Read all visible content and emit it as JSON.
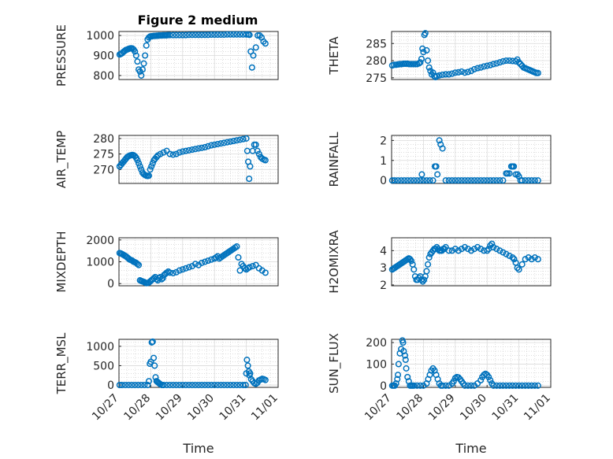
{
  "chart_data": [
    {
      "type": "scatter",
      "title": "Figure 2 medium",
      "ylabel": "PRESSURE",
      "ylim": [
        780,
        1020
      ],
      "yticks": [
        "800",
        "900",
        "1000"
      ],
      "xlim": [
        0,
        5
      ],
      "x": [
        0.02,
        0.06,
        0.1,
        0.14,
        0.18,
        0.22,
        0.26,
        0.3,
        0.34,
        0.38,
        0.42,
        0.46,
        0.5,
        0.54,
        0.58,
        0.62,
        0.66,
        0.7,
        0.74,
        0.78,
        0.82,
        0.86,
        0.9,
        0.94,
        0.98,
        1.02,
        1.06,
        1.1,
        1.14,
        1.18,
        1.22,
        1.26,
        1.3,
        1.34,
        1.38,
        1.42,
        1.46,
        1.5,
        1.54,
        1.6,
        1.7,
        1.8,
        1.9,
        2.0,
        2.1,
        2.2,
        2.3,
        2.4,
        2.5,
        2.6,
        2.7,
        2.8,
        2.9,
        3.0,
        3.1,
        3.2,
        3.3,
        3.4,
        3.5,
        3.6,
        3.7,
        3.8,
        3.9,
        4.0,
        4.06,
        4.1,
        4.14,
        4.18,
        4.22,
        4.3,
        4.36,
        4.42,
        4.48,
        4.54,
        4.6
      ],
      "values": [
        905,
        908,
        912,
        918,
        923,
        928,
        930,
        933,
        935,
        936,
        935,
        930,
        920,
        900,
        870,
        830,
        820,
        800,
        830,
        860,
        900,
        950,
        980,
        990,
        995,
        996,
        997,
        998,
        998,
        999,
        999,
        1000,
        1000,
        1000,
        1001,
        1001,
        1001,
        1001,
        1002,
        1002,
        1002,
        1002,
        1002,
        1002,
        1002,
        1003,
        1003,
        1003,
        1003,
        1003,
        1003,
        1003,
        1004,
        1004,
        1004,
        1004,
        1004,
        1005,
        1005,
        1005,
        1005,
        1005,
        1005,
        1005,
        1005,
        1003,
        920,
        840,
        900,
        940,
        1000,
        1000,
        990,
        970,
        960
      ]
    },
    {
      "type": "scatter",
      "ylabel": "THETA",
      "ylim": [
        274.5,
        288.5
      ],
      "yticks": [
        "275",
        "280",
        "285"
      ],
      "xlim": [
        0,
        5
      ],
      "x": [
        0.02,
        0.08,
        0.14,
        0.2,
        0.26,
        0.32,
        0.38,
        0.44,
        0.5,
        0.56,
        0.62,
        0.68,
        0.74,
        0.8,
        0.86,
        0.9,
        0.94,
        0.97,
        1.0,
        1.03,
        1.06,
        1.1,
        1.14,
        1.18,
        1.22,
        1.26,
        1.3,
        1.34,
        1.38,
        1.42,
        1.5,
        1.6,
        1.7,
        1.8,
        1.9,
        2.0,
        2.1,
        2.2,
        2.3,
        2.4,
        2.5,
        2.6,
        2.7,
        2.8,
        2.9,
        3.0,
        3.1,
        3.2,
        3.3,
        3.4,
        3.5,
        3.6,
        3.7,
        3.8,
        3.9,
        3.95,
        4.0,
        4.05,
        4.1,
        4.15,
        4.2,
        4.25,
        4.3,
        4.35,
        4.4,
        4.45,
        4.5,
        4.55,
        4.6
      ],
      "values": [
        278.6,
        278.8,
        278.8,
        278.9,
        279.0,
        279.0,
        279.1,
        279.1,
        279.1,
        279.0,
        279.0,
        279.0,
        279.0,
        279.0,
        279.2,
        279.5,
        280.5,
        283.5,
        282.5,
        287.5,
        288.0,
        283.0,
        280.0,
        278.0,
        277.0,
        276.0,
        276.5,
        275.5,
        275.2,
        275.5,
        275.7,
        275.9,
        276.0,
        276.0,
        276.2,
        276.5,
        276.6,
        276.8,
        276.5,
        276.7,
        277.0,
        277.5,
        277.8,
        278.0,
        278.3,
        278.5,
        278.7,
        279.0,
        279.2,
        279.5,
        279.8,
        280.0,
        280.0,
        279.9,
        279.8,
        280.3,
        279.5,
        279.0,
        278.5,
        278.0,
        277.8,
        277.6,
        277.4,
        277.2,
        277.0,
        276.8,
        276.6,
        276.4,
        276.4
      ]
    },
    {
      "type": "scatter",
      "ylabel": "AIR_TEMP",
      "ylim": [
        265.5,
        281
      ],
      "yticks": [
        "270",
        "275",
        "280"
      ],
      "xlim": [
        0,
        5
      ],
      "x": [
        0.02,
        0.06,
        0.1,
        0.14,
        0.18,
        0.22,
        0.26,
        0.3,
        0.34,
        0.38,
        0.42,
        0.46,
        0.5,
        0.54,
        0.58,
        0.62,
        0.66,
        0.7,
        0.74,
        0.78,
        0.82,
        0.86,
        0.9,
        0.94,
        0.98,
        1.02,
        1.06,
        1.1,
        1.14,
        1.18,
        1.22,
        1.3,
        1.4,
        1.5,
        1.6,
        1.7,
        1.8,
        1.9,
        2.0,
        2.1,
        2.2,
        2.3,
        2.4,
        2.5,
        2.6,
        2.7,
        2.8,
        2.9,
        3.0,
        3.1,
        3.2,
        3.3,
        3.4,
        3.5,
        3.6,
        3.7,
        3.8,
        3.9,
        4.0,
        4.03,
        4.06,
        4.09,
        4.12,
        4.2,
        4.25,
        4.3,
        4.35,
        4.4,
        4.45,
        4.5,
        4.55,
        4.6
      ],
      "values": [
        271.0,
        271.5,
        272.0,
        272.5,
        273.0,
        273.5,
        274.0,
        274.3,
        274.5,
        274.6,
        274.7,
        274.6,
        274.3,
        273.8,
        273.0,
        272.0,
        271.0,
        270.0,
        269.0,
        268.5,
        268.2,
        268.0,
        267.9,
        268.0,
        270.0,
        271.0,
        272.0,
        273.0,
        273.5,
        274.0,
        274.5,
        275.0,
        275.5,
        276.0,
        275.0,
        274.8,
        275.0,
        275.5,
        275.8,
        276.0,
        276.2,
        276.4,
        276.6,
        276.8,
        277.0,
        277.2,
        277.5,
        277.8,
        278.0,
        278.2,
        278.4,
        278.6,
        278.8,
        279.0,
        279.2,
        279.4,
        279.6,
        279.8,
        280.0,
        276.0,
        272.5,
        267.0,
        271.0,
        276.0,
        278.0,
        278.0,
        276.0,
        275.0,
        274.0,
        273.5,
        273.2,
        273.0
      ]
    },
    {
      "type": "scatter",
      "ylabel": "RAINFALL",
      "ylim": [
        -0.15,
        2.25
      ],
      "yticks": [
        "0",
        "1",
        "2"
      ],
      "xlim": [
        0,
        5
      ],
      "x": [
        0.02,
        0.1,
        0.2,
        0.3,
        0.4,
        0.5,
        0.6,
        0.7,
        0.8,
        0.9,
        0.95,
        1.0,
        1.1,
        1.2,
        1.3,
        1.36,
        1.4,
        1.44,
        1.5,
        1.54,
        1.6,
        1.7,
        1.8,
        1.9,
        2.0,
        2.1,
        2.2,
        2.3,
        2.4,
        2.5,
        2.6,
        2.7,
        2.8,
        2.9,
        3.0,
        3.1,
        3.2,
        3.3,
        3.4,
        3.5,
        3.6,
        3.64,
        3.7,
        3.76,
        3.8,
        3.84,
        3.9,
        3.96,
        4.0,
        4.05,
        4.1,
        4.2,
        4.3,
        4.4,
        4.5,
        4.6
      ],
      "values": [
        0,
        0,
        0,
        0,
        0,
        0,
        0,
        0,
        0,
        0,
        0.3,
        0,
        0,
        0,
        0,
        0.7,
        0.7,
        0.3,
        2.0,
        1.8,
        1.6,
        0,
        0,
        0,
        0,
        0,
        0,
        0,
        0,
        0,
        0,
        0,
        0,
        0,
        0,
        0,
        0,
        0,
        0,
        0,
        0.35,
        0.35,
        0.35,
        0.7,
        0.7,
        0.7,
        0.3,
        0.3,
        0.2,
        0,
        0,
        0,
        0,
        0,
        0,
        0
      ]
    },
    {
      "type": "scatter",
      "ylabel": "MIXDEPTH",
      "ylim": [
        -100,
        2100
      ],
      "yticks": [
        "0",
        "1000",
        "2000"
      ],
      "xlim": [
        0,
        5
      ],
      "x": [
        0.02,
        0.06,
        0.1,
        0.14,
        0.18,
        0.22,
        0.26,
        0.3,
        0.34,
        0.38,
        0.42,
        0.46,
        0.5,
        0.54,
        0.58,
        0.62,
        0.66,
        0.7,
        0.74,
        0.78,
        0.82,
        0.86,
        0.9,
        0.94,
        0.98,
        1.02,
        1.06,
        1.1,
        1.14,
        1.18,
        1.22,
        1.26,
        1.3,
        1.34,
        1.38,
        1.42,
        1.46,
        1.5,
        1.55,
        1.6,
        1.7,
        1.8,
        1.9,
        2.0,
        2.1,
        2.2,
        2.3,
        2.4,
        2.5,
        2.6,
        2.7,
        2.8,
        2.9,
        3.0,
        3.05,
        3.1,
        3.15,
        3.2,
        3.25,
        3.3,
        3.35,
        3.4,
        3.45,
        3.5,
        3.55,
        3.6,
        3.65,
        3.7,
        3.75,
        3.8,
        3.85,
        3.9,
        3.95,
        4.0,
        4.05,
        4.1,
        4.2,
        4.3,
        4.4,
        4.5,
        4.6
      ],
      "values": [
        1400,
        1380,
        1350,
        1320,
        1280,
        1250,
        1200,
        1150,
        1100,
        1080,
        1050,
        1000,
        980,
        950,
        900,
        850,
        150,
        120,
        100,
        80,
        50,
        20,
        30,
        50,
        100,
        150,
        200,
        250,
        300,
        200,
        150,
        250,
        300,
        200,
        250,
        400,
        450,
        500,
        550,
        500,
        480,
        520,
        600,
        650,
        700,
        750,
        800,
        900,
        850,
        950,
        1000,
        1050,
        1100,
        1150,
        1200,
        1250,
        1150,
        1200,
        1250,
        1300,
        1350,
        1400,
        1450,
        1500,
        1550,
        1600,
        1650,
        1700,
        1200,
        600,
        900,
        800,
        700,
        650,
        700,
        750,
        800,
        850,
        700,
        600,
        500
      ]
    },
    {
      "type": "scatter",
      "ylabel": "H2OMIXRA",
      "ylim": [
        1.95,
        4.75
      ],
      "yticks": [
        "2",
        "3",
        "4"
      ],
      "xlim": [
        0,
        5
      ],
      "x": [
        0.02,
        0.06,
        0.1,
        0.14,
        0.18,
        0.22,
        0.26,
        0.3,
        0.34,
        0.38,
        0.42,
        0.46,
        0.5,
        0.54,
        0.58,
        0.62,
        0.66,
        0.7,
        0.74,
        0.78,
        0.82,
        0.86,
        0.9,
        0.94,
        0.98,
        1.02,
        1.06,
        1.1,
        1.14,
        1.18,
        1.22,
        1.26,
        1.3,
        1.34,
        1.38,
        1.42,
        1.46,
        1.5,
        1.54,
        1.58,
        1.62,
        1.66,
        1.7,
        1.8,
        1.9,
        2.0,
        2.1,
        2.2,
        2.3,
        2.4,
        2.5,
        2.6,
        2.7,
        2.8,
        2.9,
        3.0,
        3.05,
        3.1,
        3.15,
        3.2,
        3.3,
        3.4,
        3.5,
        3.6,
        3.7,
        3.8,
        3.85,
        3.9,
        3.95,
        4.0,
        4.1,
        4.2,
        4.3,
        4.4,
        4.5,
        4.6
      ],
      "values": [
        2.9,
        2.95,
        3.0,
        3.05,
        3.1,
        3.15,
        3.2,
        3.25,
        3.3,
        3.35,
        3.4,
        3.45,
        3.5,
        3.55,
        3.5,
        3.4,
        3.2,
        2.9,
        2.5,
        2.3,
        2.3,
        2.4,
        2.5,
        2.3,
        2.2,
        2.3,
        2.5,
        2.8,
        3.2,
        3.6,
        3.8,
        3.9,
        4.0,
        4.1,
        4.1,
        4.2,
        4.1,
        4.0,
        4.0,
        4.0,
        4.1,
        4.1,
        4.2,
        4.0,
        4.0,
        4.1,
        4.0,
        4.1,
        4.2,
        4.1,
        4.0,
        4.1,
        4.2,
        4.1,
        4.0,
        4.0,
        4.1,
        4.3,
        4.4,
        4.2,
        4.1,
        4.0,
        3.9,
        3.8,
        3.7,
        3.6,
        3.5,
        3.3,
        3.0,
        2.9,
        3.2,
        3.5,
        3.6,
        3.5,
        3.6,
        3.5
      ]
    },
    {
      "type": "scatter",
      "ylabel": "TERR_MSL",
      "xlabel": "Time",
      "ylim": [
        -60,
        1180
      ],
      "yticks": [
        "0",
        "500",
        "1000"
      ],
      "xlim": [
        0,
        5
      ],
      "xticks": [
        "10/27",
        "10/28",
        "10/29",
        "10/30",
        "10/31",
        "11/01"
      ],
      "x": [
        0.02,
        0.1,
        0.2,
        0.3,
        0.4,
        0.5,
        0.6,
        0.7,
        0.8,
        0.9,
        0.94,
        0.97,
        1.0,
        1.03,
        1.06,
        1.09,
        1.12,
        1.15,
        1.18,
        1.21,
        1.24,
        1.27,
        1.3,
        1.35,
        1.4,
        1.5,
        1.6,
        1.7,
        1.8,
        1.9,
        2.0,
        2.1,
        2.2,
        2.3,
        2.4,
        2.5,
        2.6,
        2.7,
        2.8,
        2.9,
        3.0,
        3.1,
        3.2,
        3.3,
        3.4,
        3.5,
        3.6,
        3.7,
        3.8,
        3.9,
        3.98,
        4.0,
        4.02,
        4.05,
        4.08,
        4.1,
        4.12,
        4.15,
        4.2,
        4.25,
        4.3,
        4.35,
        4.4,
        4.45,
        4.5,
        4.55,
        4.6
      ],
      "values": [
        0,
        0,
        0,
        0,
        0,
        0,
        0,
        0,
        0,
        0,
        100,
        550,
        600,
        1100,
        1120,
        700,
        500,
        200,
        100,
        80,
        60,
        40,
        20,
        0,
        0,
        0,
        0,
        0,
        0,
        0,
        0,
        0,
        0,
        0,
        0,
        0,
        0,
        0,
        0,
        0,
        0,
        0,
        0,
        0,
        0,
        0,
        0,
        0,
        0,
        0,
        0,
        300,
        650,
        500,
        350,
        250,
        300,
        150,
        100,
        50,
        30,
        60,
        120,
        140,
        160,
        150,
        130
      ]
    },
    {
      "type": "scatter",
      "ylabel": "SUN_FLUX",
      "xlabel": "Time",
      "ylim": [
        -8,
        215
      ],
      "yticks": [
        "0",
        "100",
        "200"
      ],
      "xlim": [
        0,
        5
      ],
      "xticks": [
        "10/27",
        "10/28",
        "10/29",
        "10/30",
        "10/31",
        "11/01"
      ],
      "x": [
        0.02,
        0.06,
        0.1,
        0.14,
        0.18,
        0.2,
        0.22,
        0.26,
        0.3,
        0.34,
        0.36,
        0.38,
        0.42,
        0.44,
        0.46,
        0.5,
        0.54,
        0.58,
        0.62,
        0.66,
        0.7,
        0.8,
        0.9,
        1.0,
        1.1,
        1.15,
        1.2,
        1.25,
        1.3,
        1.35,
        1.4,
        1.45,
        1.5,
        1.55,
        1.6,
        1.7,
        1.8,
        1.9,
        1.95,
        2.0,
        2.05,
        2.1,
        2.15,
        2.2,
        2.25,
        2.3,
        2.4,
        2.5,
        2.6,
        2.7,
        2.8,
        2.85,
        2.9,
        2.95,
        3.0,
        3.05,
        3.1,
        3.15,
        3.2,
        3.3,
        3.4,
        3.5,
        3.6,
        3.7,
        3.8,
        3.9,
        4.0,
        4.1,
        4.2,
        4.3,
        4.4,
        4.5,
        4.6
      ],
      "values": [
        0,
        0,
        0,
        10,
        30,
        50,
        100,
        150,
        170,
        210,
        200,
        160,
        140,
        120,
        80,
        40,
        20,
        0,
        0,
        0,
        0,
        0,
        0,
        0,
        10,
        30,
        50,
        70,
        80,
        70,
        50,
        30,
        10,
        0,
        0,
        0,
        0,
        10,
        20,
        35,
        40,
        38,
        30,
        20,
        10,
        0,
        0,
        0,
        0,
        10,
        25,
        40,
        50,
        55,
        50,
        40,
        25,
        10,
        0,
        0,
        0,
        0,
        0,
        0,
        0,
        0,
        0,
        0,
        0,
        0,
        0,
        0,
        0
      ]
    }
  ]
}
